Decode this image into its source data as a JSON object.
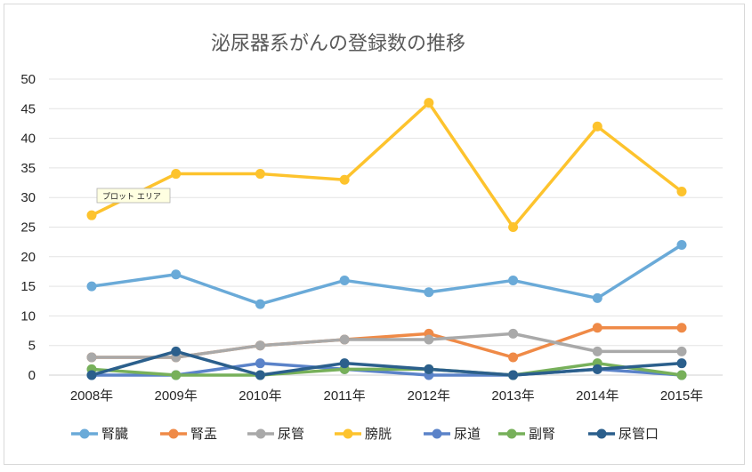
{
  "chart_data": {
    "type": "line",
    "title": "泌尿器系がんの登録数の推移",
    "categories": [
      "2008年",
      "2009年",
      "2010年",
      "2011年",
      "2012年",
      "2013年",
      "2014年",
      "2015年"
    ],
    "ylim": [
      0,
      50
    ],
    "yticks": [
      0,
      5,
      10,
      15,
      20,
      25,
      30,
      35,
      40,
      45,
      50
    ],
    "grid": true,
    "legend_position": "bottom",
    "series": [
      {
        "name": "腎臓",
        "color": "#6aaad8",
        "values": [
          15,
          17,
          12,
          16,
          14,
          16,
          13,
          22
        ]
      },
      {
        "name": "腎盂",
        "color": "#ef8a47",
        "values": [
          3,
          3,
          5,
          6,
          7,
          3,
          8,
          8
        ]
      },
      {
        "name": "尿管",
        "color": "#a9a9a9",
        "values": [
          3,
          3,
          5,
          6,
          6,
          7,
          4,
          4
        ]
      },
      {
        "name": "膀胱",
        "color": "#fdc32d",
        "values": [
          27,
          34,
          34,
          33,
          46,
          25,
          42,
          31
        ]
      },
      {
        "name": "尿道",
        "color": "#5b83c9",
        "values": [
          0,
          0,
          2,
          1,
          0,
          0,
          1,
          0
        ]
      },
      {
        "name": "副腎",
        "color": "#77b05a",
        "values": [
          1,
          0,
          0,
          1,
          1,
          0,
          2,
          0
        ]
      },
      {
        "name": "尿管口",
        "color": "#2b5f8c",
        "values": [
          0,
          4,
          0,
          2,
          1,
          0,
          1,
          2
        ]
      }
    ]
  },
  "tooltip": {
    "text": "プロット エリア"
  }
}
